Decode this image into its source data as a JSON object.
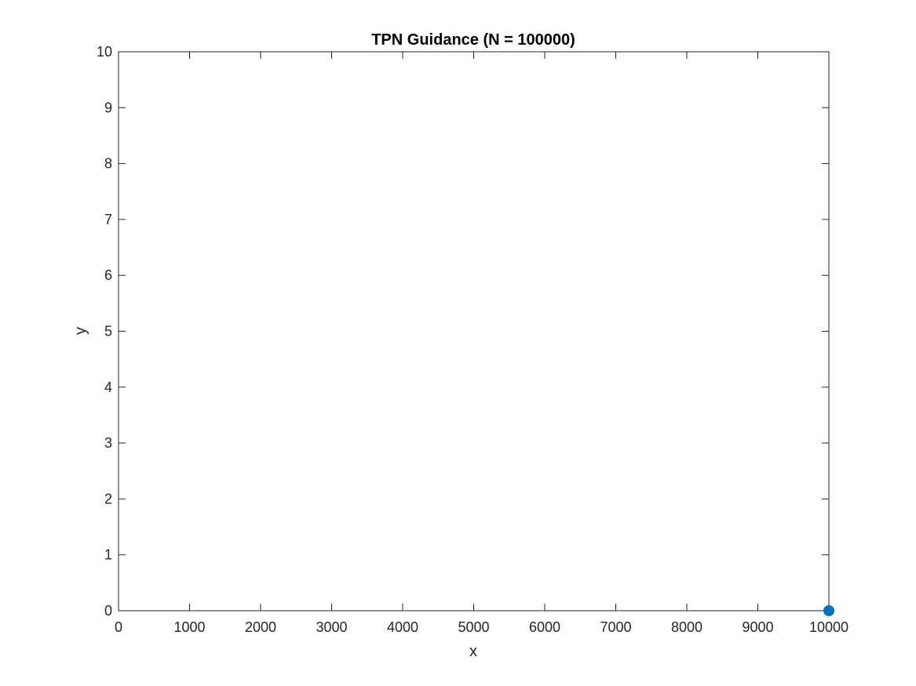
{
  "chart_data": {
    "type": "scatter",
    "title": "TPN Guidance (N = 100000)",
    "xlabel": "x",
    "ylabel": "y",
    "xlim": [
      0,
      10000
    ],
    "ylim": [
      0,
      10
    ],
    "x_ticks": [
      0,
      1000,
      2000,
      3000,
      4000,
      5000,
      6000,
      7000,
      8000,
      9000,
      10000
    ],
    "y_ticks": [
      0,
      1,
      2,
      3,
      4,
      5,
      6,
      7,
      8,
      9,
      10
    ],
    "grid": false,
    "box": true,
    "series": [
      {
        "x": [
          10000
        ],
        "y": [
          0
        ],
        "color": "#0072BD",
        "marker": "circle-filled"
      }
    ]
  }
}
